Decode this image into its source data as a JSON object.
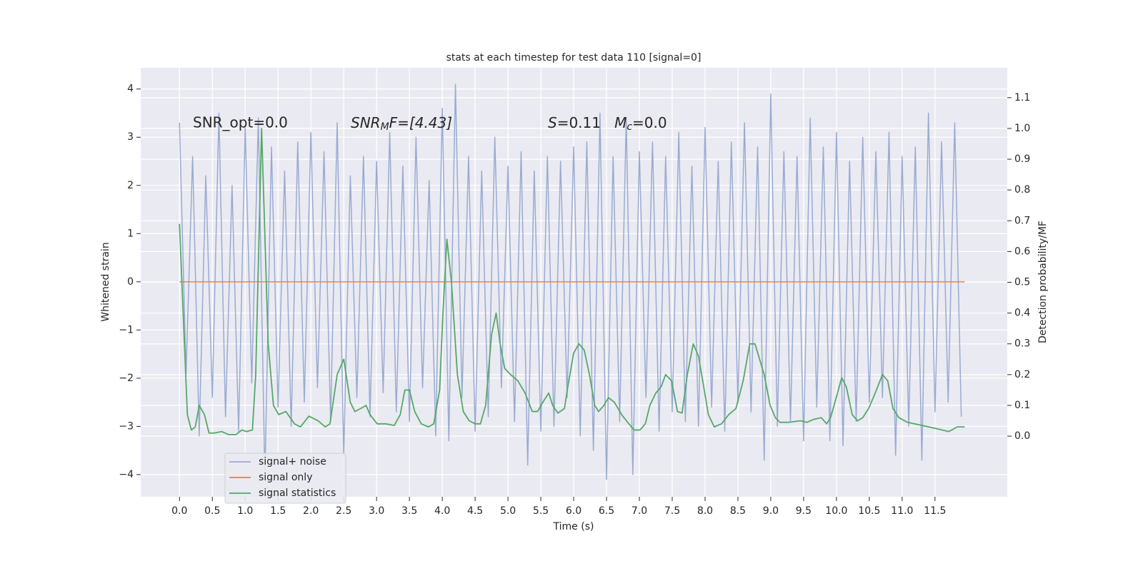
{
  "chart_data": {
    "type": "line",
    "title": "stats at each timestep for test data 110 [signal=0]",
    "x_label": "Time (s)",
    "y_label": "Whitened strain",
    "y2_label": "Detection probability/MF",
    "annotations": [
      "SNR_opt=0.0",
      [
        "SNR",
        "M",
        "F=[4.43]"
      ],
      [
        "S",
        "=0.11   ",
        "M",
        "c",
        "=0.0"
      ]
    ],
    "xlim": [
      -0.59,
      12.6
    ],
    "ylim": [
      -4.46,
      4.44
    ],
    "y2lim": [
      -0.197,
      1.197
    ],
    "xticks": [
      {
        "value": 0,
        "label": "0.0"
      },
      0.5,
      {
        "value": 1,
        "label": "1.0"
      },
      1.5,
      {
        "value": 2,
        "label": "2.0"
      },
      2.5,
      {
        "value": 3,
        "label": "3.0"
      },
      3.5,
      {
        "value": 4,
        "label": "4.0"
      },
      4.5,
      {
        "value": 5,
        "label": "5.0"
      },
      5.5,
      {
        "value": 6,
        "label": "6.0"
      },
      6.5,
      {
        "value": 7,
        "label": "7.0"
      },
      7.5,
      {
        "value": 8,
        "label": "8.0"
      },
      8.5,
      {
        "value": 9,
        "label": "9.0"
      },
      9.5,
      {
        "value": 10,
        "label": "10.0"
      },
      10.5,
      {
        "value": 11,
        "label": "11.0"
      },
      11.5
    ],
    "yticks": [
      {
        "value": -4,
        "label": "−4"
      },
      {
        "value": -3,
        "label": "−3"
      },
      {
        "value": -2,
        "label": "−2"
      },
      {
        "value": -1,
        "label": "−1"
      },
      0,
      1,
      2,
      3,
      4
    ],
    "y2ticks": [
      {
        "value": 0,
        "label": "0.0"
      },
      0.1,
      0.2,
      0.3,
      0.4,
      0.5,
      0.6,
      0.7,
      0.8,
      0.9,
      {
        "value": 1,
        "label": "1.0"
      },
      1.1
    ],
    "grid": true,
    "legend": "lower left",
    "series": [
      {
        "name": "signal+ noise",
        "color": "#9aabd1",
        "x": [
          0,
          0.1,
          0.2,
          0.3,
          0.4,
          0.5,
          0.6,
          0.7,
          0.8,
          0.9,
          1,
          1.1,
          1.2,
          1.3,
          1.4,
          1.5,
          1.6,
          1.7,
          1.8,
          1.9,
          2,
          2.1,
          2.2,
          2.3,
          2.4,
          2.5,
          2.6,
          2.7,
          2.8,
          2.9,
          3,
          3.1,
          3.2,
          3.3,
          3.4,
          3.5,
          3.6,
          3.7,
          3.8,
          3.9,
          4,
          4.1,
          4.2,
          4.3,
          4.4,
          4.5,
          4.6,
          4.7,
          4.8,
          4.9,
          5,
          5.1,
          5.2,
          5.3,
          5.4,
          5.5,
          5.6,
          5.7,
          5.8,
          5.9,
          6,
          6.1,
          6.2,
          6.3,
          6.4,
          6.5,
          6.6,
          6.7,
          6.8,
          6.9,
          7,
          7.1,
          7.2,
          7.3,
          7.4,
          7.5,
          7.6,
          7.7,
          7.8,
          7.9,
          8,
          8.1,
          8.2,
          8.3,
          8.4,
          8.5,
          8.6,
          8.7,
          8.8,
          8.9,
          9,
          9.1,
          9.2,
          9.3,
          9.4,
          9.5,
          9.6,
          9.7,
          9.8,
          9.9,
          10,
          10.1,
          10.2,
          10.3,
          10.4,
          10.5,
          10.6,
          10.7,
          10.8,
          10.9,
          11,
          11.1,
          11.2,
          11.3,
          11.4,
          11.5,
          11.6,
          11.7,
          11.8,
          11.9
        ],
        "values": [
          3.3,
          -1.9,
          2.6,
          -3.2,
          2.2,
          -2.4,
          3.5,
          -2.8,
          2.0,
          -3.1,
          3.2,
          -2.1,
          3.4,
          -4.1,
          2.8,
          -2.6,
          2.3,
          -3.0,
          2.9,
          -2.5,
          3.1,
          -2.2,
          2.7,
          -2.9,
          3.3,
          -3.6,
          2.2,
          -2.4,
          2.6,
          -2.8,
          2.5,
          -2.3,
          3.1,
          -2.7,
          2.4,
          -2.9,
          3.0,
          -2.2,
          2.1,
          -3.2,
          3.6,
          -3.3,
          4.1,
          -2.4,
          2.6,
          -3.1,
          2.3,
          -2.8,
          3.0,
          -2.2,
          2.4,
          -2.9,
          2.7,
          -3.8,
          2.3,
          -3.1,
          2.6,
          -3.0,
          2.5,
          -2.4,
          2.8,
          -3.2,
          2.9,
          -3.5,
          3.5,
          -4.1,
          2.6,
          -2.9,
          3.4,
          -4.0,
          2.7,
          -2.4,
          2.9,
          -3.1,
          2.6,
          -2.7,
          3.1,
          -2.9,
          2.4,
          -3.0,
          3.2,
          -2.6,
          2.5,
          -3.1,
          2.9,
          -2.5,
          3.3,
          -2.7,
          2.8,
          -3.7,
          3.9,
          -3.0,
          2.7,
          -2.9,
          2.6,
          -3.3,
          3.4,
          -2.6,
          2.8,
          -3.3,
          3.1,
          -3.4,
          2.5,
          -2.9,
          3.0,
          -2.5,
          2.7,
          -2.4,
          3.1,
          -3.6,
          2.6,
          -3.0,
          2.8,
          -3.7,
          3.5,
          -2.7,
          2.9,
          -2.5,
          3.3,
          -2.8
        ]
      },
      {
        "name": "signal only",
        "color": "#dd8452",
        "x": [
          0,
          11.95
        ],
        "values": [
          0,
          0
        ]
      },
      {
        "name": "signal statistics",
        "color": "#55a868",
        "axis": "y2",
        "x": [
          0,
          0.12,
          0.18,
          0.24,
          0.3,
          0.38,
          0.45,
          0.53,
          0.64,
          0.75,
          0.86,
          0.95,
          1.02,
          1.11,
          1.16,
          1.25,
          1.35,
          1.43,
          1.51,
          1.62,
          1.75,
          1.84,
          1.97,
          2.11,
          2.22,
          2.29,
          2.4,
          2.5,
          2.6,
          2.67,
          2.76,
          2.84,
          2.9,
          3.01,
          3.14,
          3.27,
          3.36,
          3.43,
          3.5,
          3.58,
          3.68,
          3.79,
          3.87,
          3.96,
          4.01,
          4.07,
          4.14,
          4.23,
          4.32,
          4.41,
          4.5,
          4.58,
          4.66,
          4.75,
          4.82,
          4.88,
          4.95,
          5.04,
          5.15,
          5.26,
          5.37,
          5.45,
          5.53,
          5.62,
          5.68,
          5.76,
          5.86,
          5.91,
          6.0,
          6.08,
          6.16,
          6.24,
          6.32,
          6.38,
          6.46,
          6.53,
          6.62,
          6.73,
          6.84,
          6.92,
          7.01,
          7.09,
          7.16,
          7.25,
          7.33,
          7.4,
          7.49,
          7.58,
          7.65,
          7.73,
          7.82,
          7.9,
          7.98,
          8.05,
          8.14,
          8.25,
          8.36,
          8.47,
          8.58,
          8.68,
          8.76,
          8.83,
          8.9,
          8.99,
          9.07,
          9.14,
          9.28,
          9.45,
          9.55,
          9.66,
          9.77,
          9.85,
          9.91,
          9.99,
          10.08,
          10.15,
          10.24,
          10.32,
          10.4,
          10.49,
          10.59,
          10.7,
          10.78,
          10.86,
          10.95,
          11.08,
          11.3,
          11.51,
          11.71,
          11.84,
          11.95
        ],
        "values": [
          0.69,
          0.07,
          0.02,
          0.03,
          0.1,
          0.07,
          0.01,
          0.01,
          0.015,
          0.005,
          0.005,
          0.02,
          0.015,
          0.02,
          0.2,
          1.0,
          0.3,
          0.1,
          0.07,
          0.08,
          0.04,
          0.03,
          0.065,
          0.05,
          0.03,
          0.04,
          0.2,
          0.25,
          0.11,
          0.08,
          0.09,
          0.1,
          0.07,
          0.04,
          0.04,
          0.035,
          0.07,
          0.15,
          0.15,
          0.08,
          0.04,
          0.03,
          0.04,
          0.15,
          0.4,
          0.64,
          0.5,
          0.2,
          0.08,
          0.05,
          0.04,
          0.04,
          0.1,
          0.33,
          0.4,
          0.3,
          0.22,
          0.2,
          0.18,
          0.14,
          0.08,
          0.08,
          0.11,
          0.14,
          0.1,
          0.075,
          0.09,
          0.16,
          0.27,
          0.3,
          0.28,
          0.2,
          0.1,
          0.08,
          0.1,
          0.125,
          0.11,
          0.07,
          0.04,
          0.02,
          0.02,
          0.04,
          0.1,
          0.14,
          0.16,
          0.2,
          0.18,
          0.08,
          0.075,
          0.2,
          0.3,
          0.26,
          0.16,
          0.07,
          0.03,
          0.04,
          0.07,
          0.09,
          0.18,
          0.3,
          0.3,
          0.25,
          0.2,
          0.1,
          0.06,
          0.045,
          0.045,
          0.05,
          0.045,
          0.055,
          0.06,
          0.04,
          0.06,
          0.12,
          0.19,
          0.16,
          0.07,
          0.05,
          0.06,
          0.09,
          0.14,
          0.2,
          0.18,
          0.09,
          0.06,
          0.045,
          0.035,
          0.025,
          0.015,
          0.03,
          0.03
        ]
      }
    ]
  }
}
